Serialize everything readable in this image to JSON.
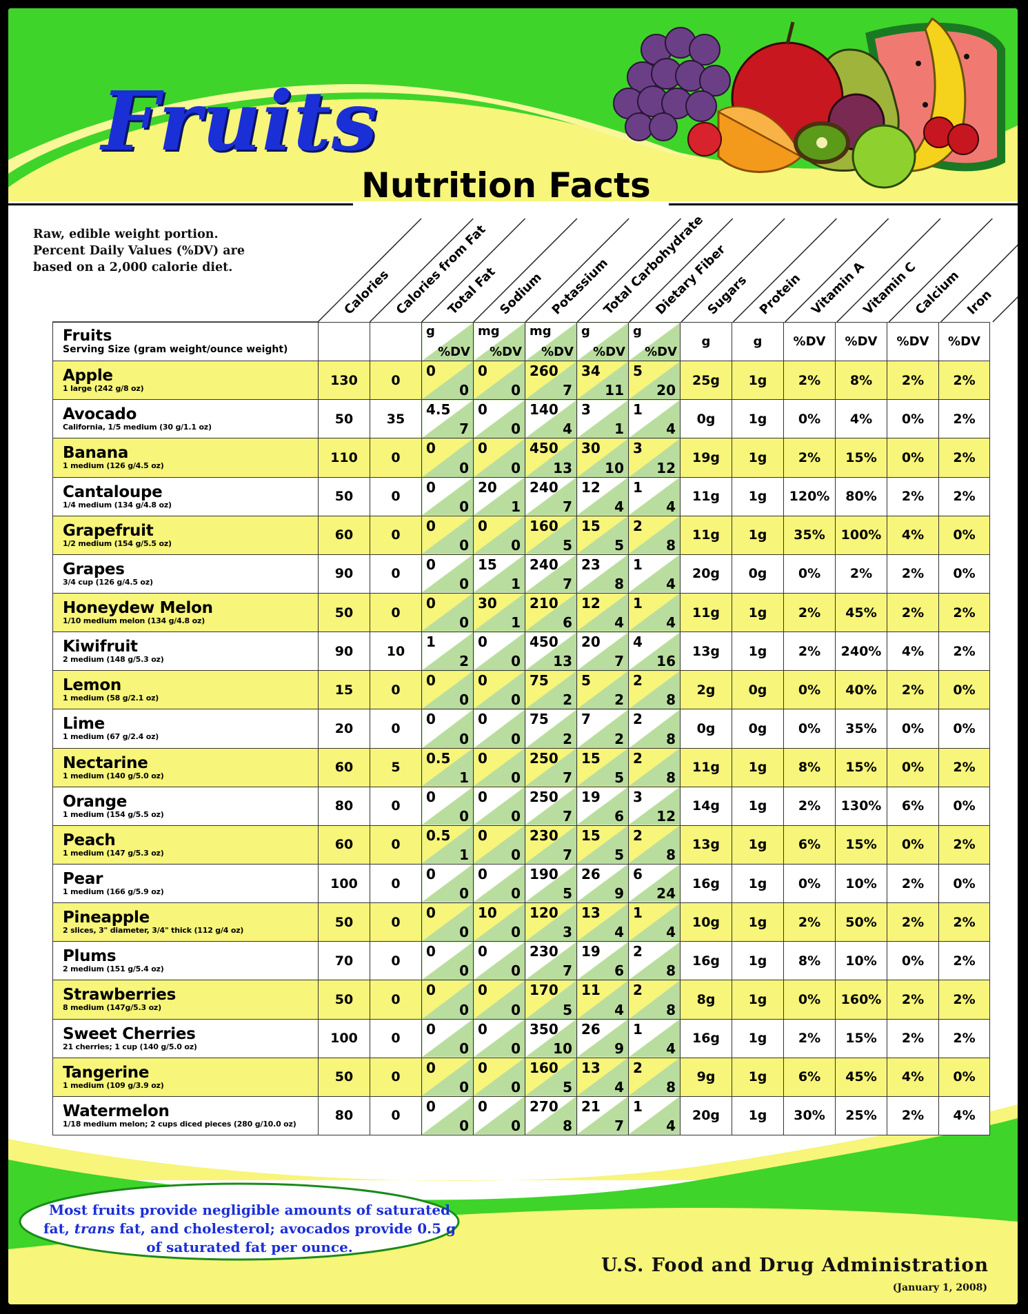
{
  "title": "Fruits",
  "subtitle": "Nutrition Facts",
  "intro": [
    "Raw, edible weight portion.",
    "Percent Daily Values (%DV) are",
    "based on a 2,000 calorie diet."
  ],
  "columns": [
    "Calories",
    "Calories from Fat",
    "Total Fat",
    "Sodium",
    "Potassium",
    "Total Carbohydrate",
    "Dietary Fiber",
    "Sugars",
    "Protein",
    "Vitamin A",
    "Vitamin C",
    "Calcium",
    "Iron"
  ],
  "table_header": {
    "name": "Fruits",
    "serving": "Serving Size (gram weight/ounce weight)",
    "units": [
      {
        "unit": "g",
        "dv": "%DV"
      },
      {
        "unit": "mg",
        "dv": "%DV"
      },
      {
        "unit": "mg",
        "dv": "%DV"
      },
      {
        "unit": "g",
        "dv": "%DV"
      },
      {
        "unit": "g",
        "dv": "%DV"
      }
    ],
    "sugars_unit": "g",
    "protein_unit": "g",
    "vitamin_a_unit": "%DV",
    "vitamin_c_unit": "%DV",
    "calcium_unit": "%DV",
    "iron_unit": "%DV"
  },
  "rows": [
    {
      "name": "Apple",
      "serving": "1 large (242 g/8 oz)",
      "calories": "130",
      "cal_fat": "0",
      "fat": [
        "0",
        "0"
      ],
      "sodium": [
        "0",
        "0"
      ],
      "potassium": [
        "260",
        "7"
      ],
      "carb": [
        "34",
        "11"
      ],
      "fiber": [
        "5",
        "20"
      ],
      "sugars": "25g",
      "protein": "1g",
      "vit_a": "2%",
      "vit_c": "8%",
      "calcium": "2%",
      "iron": "2%"
    },
    {
      "name": "Avocado",
      "serving": "California, 1/5 medium (30 g/1.1 oz)",
      "calories": "50",
      "cal_fat": "35",
      "fat": [
        "4.5",
        "7"
      ],
      "sodium": [
        "0",
        "0"
      ],
      "potassium": [
        "140",
        "4"
      ],
      "carb": [
        "3",
        "1"
      ],
      "fiber": [
        "1",
        "4"
      ],
      "sugars": "0g",
      "protein": "1g",
      "vit_a": "0%",
      "vit_c": "4%",
      "calcium": "0%",
      "iron": "2%"
    },
    {
      "name": "Banana",
      "serving": "1 medium (126 g/4.5 oz)",
      "calories": "110",
      "cal_fat": "0",
      "fat": [
        "0",
        "0"
      ],
      "sodium": [
        "0",
        "0"
      ],
      "potassium": [
        "450",
        "13"
      ],
      "carb": [
        "30",
        "10"
      ],
      "fiber": [
        "3",
        "12"
      ],
      "sugars": "19g",
      "protein": "1g",
      "vit_a": "2%",
      "vit_c": "15%",
      "calcium": "0%",
      "iron": "2%"
    },
    {
      "name": "Cantaloupe",
      "serving": "1/4 medium (134 g/4.8 oz)",
      "calories": "50",
      "cal_fat": "0",
      "fat": [
        "0",
        "0"
      ],
      "sodium": [
        "20",
        "1"
      ],
      "potassium": [
        "240",
        "7"
      ],
      "carb": [
        "12",
        "4"
      ],
      "fiber": [
        "1",
        "4"
      ],
      "sugars": "11g",
      "protein": "1g",
      "vit_a": "120%",
      "vit_c": "80%",
      "calcium": "2%",
      "iron": "2%"
    },
    {
      "name": "Grapefruit",
      "serving": "1/2 medium (154 g/5.5 oz)",
      "calories": "60",
      "cal_fat": "0",
      "fat": [
        "0",
        "0"
      ],
      "sodium": [
        "0",
        "0"
      ],
      "potassium": [
        "160",
        "5"
      ],
      "carb": [
        "15",
        "5"
      ],
      "fiber": [
        "2",
        "8"
      ],
      "sugars": "11g",
      "protein": "1g",
      "vit_a": "35%",
      "vit_c": "100%",
      "calcium": "4%",
      "iron": "0%"
    },
    {
      "name": "Grapes",
      "serving": "3/4 cup (126 g/4.5 oz)",
      "calories": "90",
      "cal_fat": "0",
      "fat": [
        "0",
        "0"
      ],
      "sodium": [
        "15",
        "1"
      ],
      "potassium": [
        "240",
        "7"
      ],
      "carb": [
        "23",
        "8"
      ],
      "fiber": [
        "1",
        "4"
      ],
      "sugars": "20g",
      "protein": "0g",
      "vit_a": "0%",
      "vit_c": "2%",
      "calcium": "2%",
      "iron": "0%"
    },
    {
      "name": "Honeydew Melon",
      "serving": "1/10 medium melon (134 g/4.8 oz)",
      "calories": "50",
      "cal_fat": "0",
      "fat": [
        "0",
        "0"
      ],
      "sodium": [
        "30",
        "1"
      ],
      "potassium": [
        "210",
        "6"
      ],
      "carb": [
        "12",
        "4"
      ],
      "fiber": [
        "1",
        "4"
      ],
      "sugars": "11g",
      "protein": "1g",
      "vit_a": "2%",
      "vit_c": "45%",
      "calcium": "2%",
      "iron": "2%"
    },
    {
      "name": "Kiwifruit",
      "serving": "2 medium (148 g/5.3 oz)",
      "calories": "90",
      "cal_fat": "10",
      "fat": [
        "1",
        "2"
      ],
      "sodium": [
        "0",
        "0"
      ],
      "potassium": [
        "450",
        "13"
      ],
      "carb": [
        "20",
        "7"
      ],
      "fiber": [
        "4",
        "16"
      ],
      "sugars": "13g",
      "protein": "1g",
      "vit_a": "2%",
      "vit_c": "240%",
      "calcium": "4%",
      "iron": "2%"
    },
    {
      "name": "Lemon",
      "serving": "1 medium (58 g/2.1 oz)",
      "calories": "15",
      "cal_fat": "0",
      "fat": [
        "0",
        "0"
      ],
      "sodium": [
        "0",
        "0"
      ],
      "potassium": [
        "75",
        "2"
      ],
      "carb": [
        "5",
        "2"
      ],
      "fiber": [
        "2",
        "8"
      ],
      "sugars": "2g",
      "protein": "0g",
      "vit_a": "0%",
      "vit_c": "40%",
      "calcium": "2%",
      "iron": "0%"
    },
    {
      "name": "Lime",
      "serving": "1 medium (67 g/2.4 oz)",
      "calories": "20",
      "cal_fat": "0",
      "fat": [
        "0",
        "0"
      ],
      "sodium": [
        "0",
        "0"
      ],
      "potassium": [
        "75",
        "2"
      ],
      "carb": [
        "7",
        "2"
      ],
      "fiber": [
        "2",
        "8"
      ],
      "sugars": "0g",
      "protein": "0g",
      "vit_a": "0%",
      "vit_c": "35%",
      "calcium": "0%",
      "iron": "0%"
    },
    {
      "name": "Nectarine",
      "serving": "1 medium (140 g/5.0 oz)",
      "calories": "60",
      "cal_fat": "5",
      "fat": [
        "0.5",
        "1"
      ],
      "sodium": [
        "0",
        "0"
      ],
      "potassium": [
        "250",
        "7"
      ],
      "carb": [
        "15",
        "5"
      ],
      "fiber": [
        "2",
        "8"
      ],
      "sugars": "11g",
      "protein": "1g",
      "vit_a": "8%",
      "vit_c": "15%",
      "calcium": "0%",
      "iron": "2%"
    },
    {
      "name": "Orange",
      "serving": "1 medium (154 g/5.5 oz)",
      "calories": "80",
      "cal_fat": "0",
      "fat": [
        "0",
        "0"
      ],
      "sodium": [
        "0",
        "0"
      ],
      "potassium": [
        "250",
        "7"
      ],
      "carb": [
        "19",
        "6"
      ],
      "fiber": [
        "3",
        "12"
      ],
      "sugars": "14g",
      "protein": "1g",
      "vit_a": "2%",
      "vit_c": "130%",
      "calcium": "6%",
      "iron": "0%"
    },
    {
      "name": "Peach",
      "serving": "1 medium (147 g/5.3 oz)",
      "calories": "60",
      "cal_fat": "0",
      "fat": [
        "0.5",
        "1"
      ],
      "sodium": [
        "0",
        "0"
      ],
      "potassium": [
        "230",
        "7"
      ],
      "carb": [
        "15",
        "5"
      ],
      "fiber": [
        "2",
        "8"
      ],
      "sugars": "13g",
      "protein": "1g",
      "vit_a": "6%",
      "vit_c": "15%",
      "calcium": "0%",
      "iron": "2%"
    },
    {
      "name": "Pear",
      "serving": "1 medium (166 g/5.9 oz)",
      "calories": "100",
      "cal_fat": "0",
      "fat": [
        "0",
        "0"
      ],
      "sodium": [
        "0",
        "0"
      ],
      "potassium": [
        "190",
        "5"
      ],
      "carb": [
        "26",
        "9"
      ],
      "fiber": [
        "6",
        "24"
      ],
      "sugars": "16g",
      "protein": "1g",
      "vit_a": "0%",
      "vit_c": "10%",
      "calcium": "2%",
      "iron": "0%"
    },
    {
      "name": "Pineapple",
      "serving": "2 slices, 3\" diameter, 3/4\" thick (112 g/4 oz)",
      "calories": "50",
      "cal_fat": "0",
      "fat": [
        "0",
        "0"
      ],
      "sodium": [
        "10",
        "0"
      ],
      "potassium": [
        "120",
        "3"
      ],
      "carb": [
        "13",
        "4"
      ],
      "fiber": [
        "1",
        "4"
      ],
      "sugars": "10g",
      "protein": "1g",
      "vit_a": "2%",
      "vit_c": "50%",
      "calcium": "2%",
      "iron": "2%"
    },
    {
      "name": "Plums",
      "serving": "2 medium (151 g/5.4 oz)",
      "calories": "70",
      "cal_fat": "0",
      "fat": [
        "0",
        "0"
      ],
      "sodium": [
        "0",
        "0"
      ],
      "potassium": [
        "230",
        "7"
      ],
      "carb": [
        "19",
        "6"
      ],
      "fiber": [
        "2",
        "8"
      ],
      "sugars": "16g",
      "protein": "1g",
      "vit_a": "8%",
      "vit_c": "10%",
      "calcium": "0%",
      "iron": "2%"
    },
    {
      "name": "Strawberries",
      "serving": "8 medium (147g/5.3 oz)",
      "calories": "50",
      "cal_fat": "0",
      "fat": [
        "0",
        "0"
      ],
      "sodium": [
        "0",
        "0"
      ],
      "potassium": [
        "170",
        "5"
      ],
      "carb": [
        "11",
        "4"
      ],
      "fiber": [
        "2",
        "8"
      ],
      "sugars": "8g",
      "protein": "1g",
      "vit_a": "0%",
      "vit_c": "160%",
      "calcium": "2%",
      "iron": "2%"
    },
    {
      "name": "Sweet Cherries",
      "serving": "21 cherries; 1 cup (140 g/5.0 oz)",
      "calories": "100",
      "cal_fat": "0",
      "fat": [
        "0",
        "0"
      ],
      "sodium": [
        "0",
        "0"
      ],
      "potassium": [
        "350",
        "10"
      ],
      "carb": [
        "26",
        "9"
      ],
      "fiber": [
        "1",
        "4"
      ],
      "sugars": "16g",
      "protein": "1g",
      "vit_a": "2%",
      "vit_c": "15%",
      "calcium": "2%",
      "iron": "2%"
    },
    {
      "name": "Tangerine",
      "serving": "1 medium (109 g/3.9 oz)",
      "calories": "50",
      "cal_fat": "0",
      "fat": [
        "0",
        "0"
      ],
      "sodium": [
        "0",
        "0"
      ],
      "potassium": [
        "160",
        "5"
      ],
      "carb": [
        "13",
        "4"
      ],
      "fiber": [
        "2",
        "8"
      ],
      "sugars": "9g",
      "protein": "1g",
      "vit_a": "6%",
      "vit_c": "45%",
      "calcium": "4%",
      "iron": "0%"
    },
    {
      "name": "Watermelon",
      "serving": "1/18 medium melon; 2 cups diced pieces (280 g/10.0 oz)",
      "calories": "80",
      "cal_fat": "0",
      "fat": [
        "0",
        "0"
      ],
      "sodium": [
        "0",
        "0"
      ],
      "potassium": [
        "270",
        "8"
      ],
      "carb": [
        "21",
        "7"
      ],
      "fiber": [
        "1",
        "4"
      ],
      "sugars": "20g",
      "protein": "1g",
      "vit_a": "30%",
      "vit_c": "25%",
      "calcium": "2%",
      "iron": "4%"
    }
  ],
  "footnote": {
    "before_italic": "Most fruits provide negligible amounts of saturated fat, ",
    "italic": "trans",
    "after_italic": " fat, and cholesterol; avocados provide 0.5 g of saturated fat per ounce."
  },
  "source": "U.S. Food and Drug Administration",
  "date": "(January 1, 2008)",
  "colors": {
    "title_blue": "#1b2fd6",
    "band_green": "#3fd42a",
    "band_yellow": "#f7f57a",
    "dv_green": "#b9dd9e"
  }
}
